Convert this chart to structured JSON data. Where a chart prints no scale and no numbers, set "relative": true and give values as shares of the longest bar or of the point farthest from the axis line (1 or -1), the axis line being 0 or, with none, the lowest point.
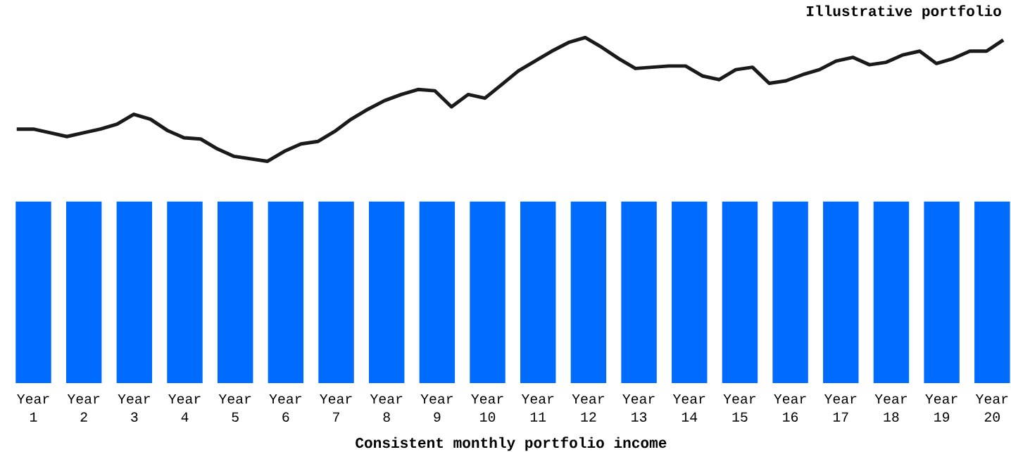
{
  "chart_data": [
    {
      "type": "line",
      "relative": true,
      "tick_labels": false,
      "categories": [
        null,
        null,
        null,
        null,
        null,
        null,
        null,
        null,
        null,
        null,
        null,
        null,
        null,
        null,
        null,
        null,
        null,
        null,
        null,
        null,
        null,
        null,
        null,
        null,
        null,
        null,
        null,
        null,
        null,
        null,
        null,
        null,
        null,
        null,
        null,
        null,
        null,
        null,
        null,
        null,
        null,
        null,
        null,
        null,
        null,
        null,
        null,
        null,
        null,
        null,
        null,
        null,
        null,
        null,
        null,
        null,
        null,
        null,
        null,
        null
      ],
      "series": [
        {
          "name": "Illustrative portfolio",
          "color": "#1a1a1a",
          "values": [
            0.26,
            0.26,
            0.23,
            0.2,
            0.23,
            0.26,
            0.3,
            0.38,
            0.34,
            0.25,
            0.19,
            0.18,
            0.1,
            0.04,
            0.02,
            0,
            0.08,
            0.14,
            0.16,
            0.24,
            0.34,
            0.42,
            0.49,
            0.54,
            0.58,
            0.57,
            0.44,
            0.54,
            0.51,
            0.62,
            0.73,
            0.81,
            0.89,
            0.96,
            1,
            0.92,
            0.83,
            0.75,
            0.76,
            0.77,
            0.77,
            0.69,
            0.66,
            0.74,
            0.76,
            0.63,
            0.65,
            0.7,
            0.74,
            0.81,
            0.84,
            0.78,
            0.8,
            0.86,
            0.89,
            0.79,
            0.83,
            0.89,
            0.89,
            0.98
          ]
        }
      ]
    },
    {
      "type": "bar",
      "relative": true,
      "xlabel": "Consistent monthly portfolio income",
      "categories": [
        "Year 1",
        "Year 2",
        "Year 3",
        "Year 4",
        "Year 5",
        "Year 6",
        "Year 7",
        "Year 8",
        "Year 9",
        "Year 10",
        "Year 11",
        "Year 12",
        "Year 13",
        "Year 14",
        "Year 15",
        "Year 16",
        "Year 17",
        "Year 18",
        "Year 19",
        "Year 20"
      ],
      "values": [
        1,
        1,
        1,
        1,
        1,
        1,
        1,
        1,
        1,
        1,
        1,
        1,
        1,
        1,
        1,
        1,
        1,
        1,
        1,
        1
      ],
      "color": "#006bff"
    }
  ]
}
